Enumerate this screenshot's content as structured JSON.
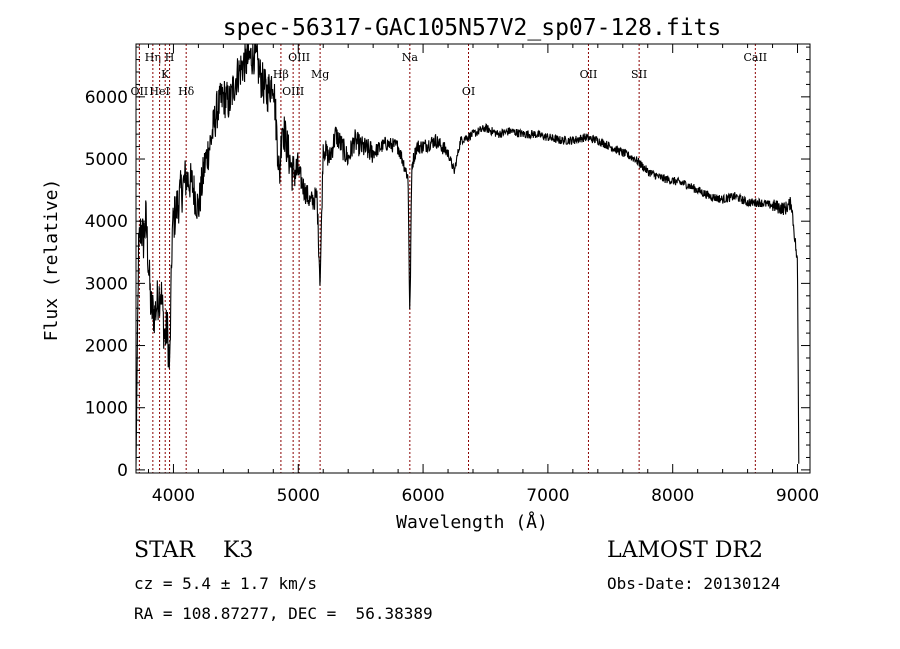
{
  "chart_data": {
    "type": "line",
    "title": "spec-56317-GAC105N57V2_sp07-128.fits",
    "xlabel": "Wavelength (Å)",
    "ylabel": "Flux (relative)",
    "xlim": [
      3700,
      9100
    ],
    "ylim": [
      -50,
      6850
    ],
    "xticks": [
      4000,
      5000,
      6000,
      7000,
      8000,
      9000
    ],
    "yticks": [
      0,
      1000,
      2000,
      3000,
      4000,
      5000,
      6000
    ],
    "line_color": "#000000",
    "marker_color": "#8b0000",
    "lines": [
      {
        "label": "OII",
        "x": 3727,
        "row": 3
      },
      {
        "label": "Hη",
        "x": 3835,
        "row": 1
      },
      {
        "label": "HeI",
        "x": 3889,
        "row": 3
      },
      {
        "label": "K",
        "x": 3934,
        "row": 2
      },
      {
        "label": "H",
        "x": 3969,
        "row": 1
      },
      {
        "label": "Hδ",
        "x": 4102,
        "row": 3
      },
      {
        "label": "Hβ",
        "x": 4861,
        "row": 2
      },
      {
        "label": "OIII",
        "x": 4959,
        "row": 3
      },
      {
        "label": "OIII",
        "x": 5007,
        "row": 1
      },
      {
        "label": "Mg",
        "x": 5175,
        "row": 2
      },
      {
        "label": "Na",
        "x": 5894,
        "row": 1
      },
      {
        "label": "OI",
        "x": 6364,
        "row": 3
      },
      {
        "label": "OII",
        "x": 7325,
        "row": 2
      },
      {
        "label": "SII",
        "x": 7731,
        "row": 2
      },
      {
        "label": "CaII",
        "x": 8662,
        "row": 1
      }
    ],
    "spectrum": {
      "x": [
        3700,
        3720,
        3740,
        3760,
        3780,
        3800,
        3820,
        3850,
        3880,
        3900,
        3930,
        3950,
        3970,
        3990,
        4000,
        4050,
        4100,
        4150,
        4200,
        4250,
        4300,
        4350,
        4400,
        4450,
        4500,
        4550,
        4600,
        4650,
        4700,
        4750,
        4800,
        4850,
        4870,
        4900,
        4950,
        5000,
        5050,
        5100,
        5150,
        5175,
        5200,
        5250,
        5300,
        5350,
        5400,
        5450,
        5500,
        5600,
        5700,
        5800,
        5850,
        5880,
        5894,
        5910,
        5950,
        6000,
        6100,
        6200,
        6250,
        6300,
        6400,
        6500,
        6600,
        6700,
        6800,
        6900,
        7000,
        7100,
        7200,
        7300,
        7400,
        7500,
        7600,
        7700,
        7800,
        7900,
        8000,
        8100,
        8200,
        8300,
        8400,
        8500,
        8600,
        8700,
        8800,
        8900,
        8950,
        9000,
        9010
      ],
      "y": [
        50,
        3500,
        3900,
        3700,
        4050,
        3300,
        2600,
        2500,
        2800,
        2900,
        2100,
        2300,
        1600,
        3800,
        4000,
        4400,
        4700,
        4600,
        4200,
        4900,
        5300,
        5800,
        6000,
        5900,
        6300,
        6500,
        6600,
        6700,
        6300,
        6050,
        6300,
        4700,
        5600,
        5300,
        4800,
        4800,
        4500,
        4300,
        4400,
        3000,
        5200,
        5000,
        5400,
        5200,
        5000,
        5300,
        5200,
        5100,
        5250,
        5200,
        4900,
        4700,
        2400,
        4900,
        5200,
        5200,
        5300,
        5100,
        4800,
        5300,
        5400,
        5500,
        5400,
        5450,
        5400,
        5400,
        5350,
        5300,
        5300,
        5350,
        5300,
        5200,
        5100,
        5000,
        4800,
        4700,
        4650,
        4600,
        4500,
        4400,
        4350,
        4400,
        4300,
        4300,
        4250,
        4200,
        4300,
        3300,
        100
      ]
    }
  },
  "info": {
    "class_line": "STAR    K3",
    "survey": "LAMOST DR2",
    "cz_line": "cz = 5.4 ± 1.7 km/s",
    "obs_line": "Obs-Date: 20130124",
    "radec_line": "RA = 108.87277, DEC =  56.38389"
  }
}
